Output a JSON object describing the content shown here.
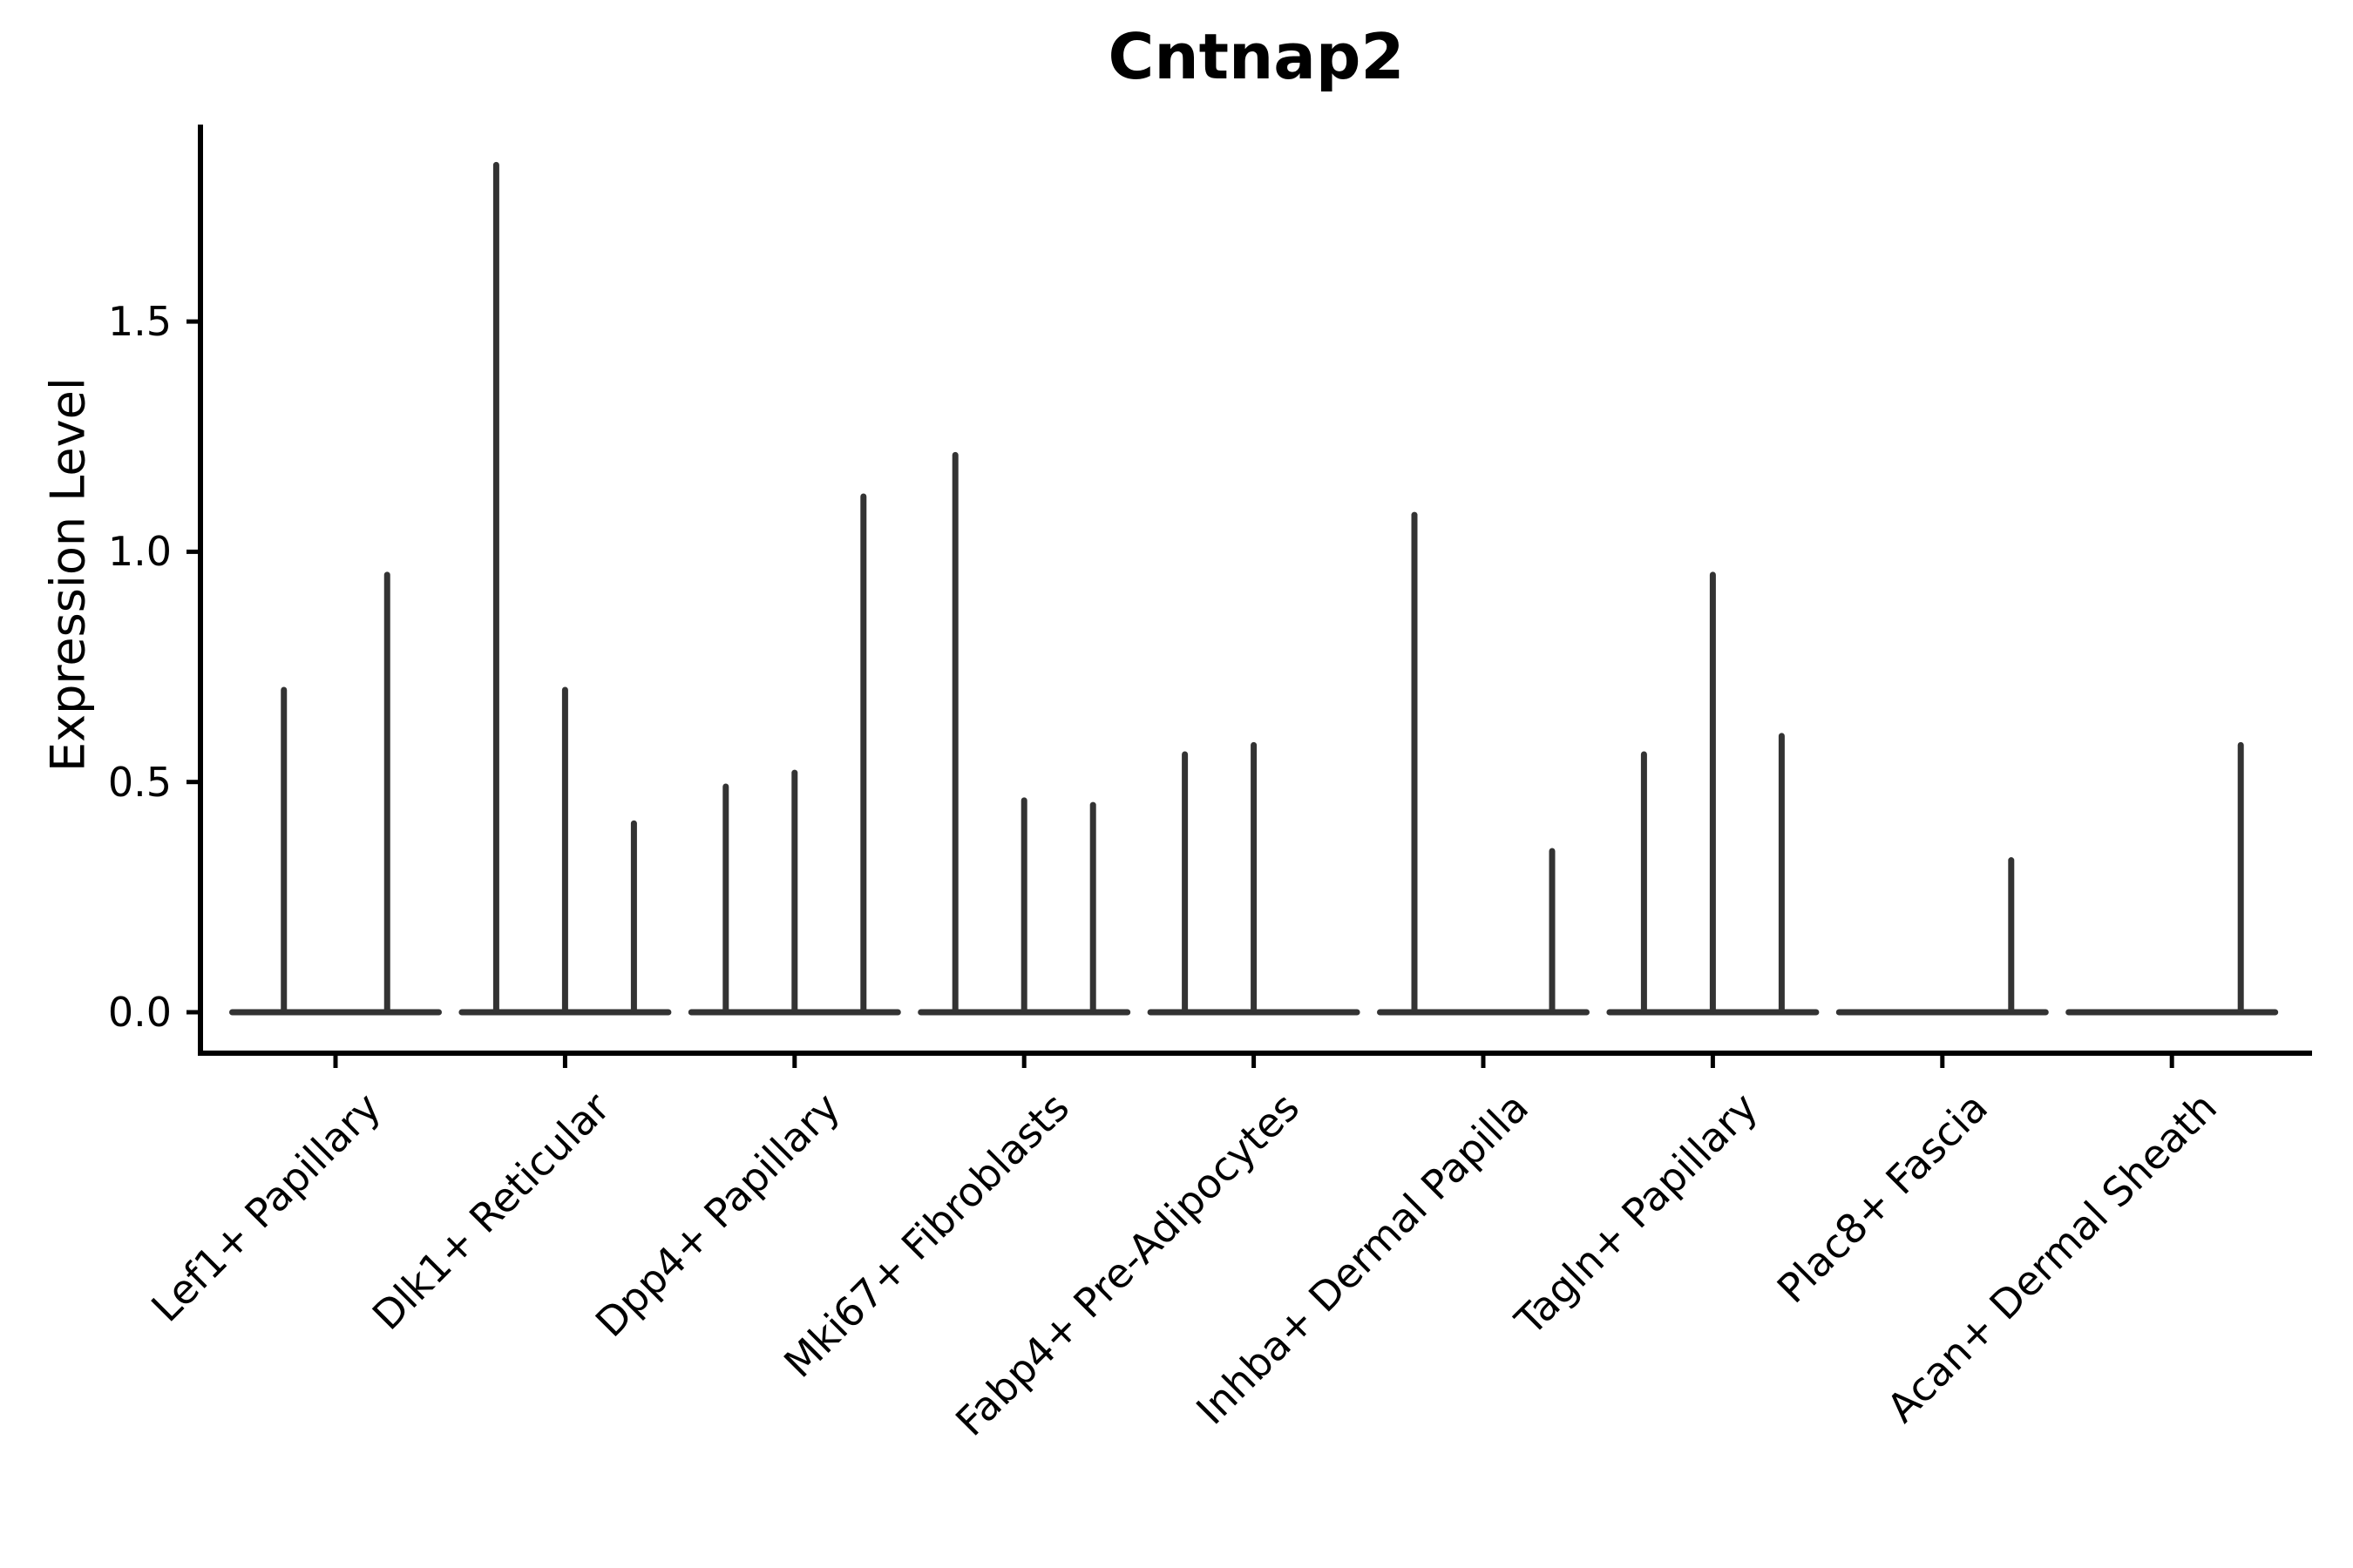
{
  "title": "Cntnap2",
  "y_axis": {
    "label": "Expression Level",
    "tick_labels": [
      "0.0",
      "0.5",
      "1.0",
      "1.5"
    ],
    "tick_values": [
      0.0,
      0.5,
      1.0,
      1.5
    ]
  },
  "x_axis": {
    "categories": [
      "Lef1+ Papillary",
      "Dlk1+ Reticular",
      "Dpp4+ Papillary",
      "Mki67+ Fibroblasts",
      "Fabp4+ Pre-Adipocytes",
      "Inhba+ Dermal Papilla",
      "Tagln+ Papillary",
      "Plac8+ Fascia",
      "Acan+ Dermal Sheath"
    ],
    "rotation_degrees": 45
  },
  "chart_data": {
    "type": "violin",
    "title": "Cntnap2",
    "xlabel": "",
    "ylabel": "Expression Level",
    "ylim": [
      -0.09,
      1.93
    ],
    "yticks": [
      0.0,
      0.5,
      1.0,
      1.5
    ],
    "grid": false,
    "legend": "none",
    "description": "Grouped single-gene violin plot; violins are extremely thin spikes rising from wide flat bases at zero expression. Peak value is the maximum expression level reached by each violin; 0 means a flat violin with no spike.",
    "categories": [
      "Lef1+ Papillary",
      "Dlk1+ Reticular",
      "Dpp4+ Papillary",
      "Mki67+ Fibroblasts",
      "Fabp4+ Pre-Adipocytes",
      "Inhba+ Dermal Papilla",
      "Tagln+ Papillary",
      "Plac8+ Fascia",
      "Acan+ Dermal Sheath"
    ],
    "series": [
      {
        "category": "Lef1+ Papillary",
        "violin_peaks": [
          0.7,
          0.95
        ]
      },
      {
        "category": "Dlk1+ Reticular",
        "violin_peaks": [
          1.84,
          0.7,
          0.41
        ]
      },
      {
        "category": "Dpp4+ Papillary",
        "violin_peaks": [
          0.49,
          0.52,
          1.12
        ]
      },
      {
        "category": "Mki67+ Fibroblasts",
        "violin_peaks": [
          1.21,
          0.46,
          0.45
        ]
      },
      {
        "category": "Fabp4+ Pre-Adipocytes",
        "violin_peaks": [
          0.56,
          0.58,
          0.0
        ]
      },
      {
        "category": "Inhba+ Dermal Papilla",
        "violin_peaks": [
          1.08,
          0.0,
          0.35
        ]
      },
      {
        "category": "Tagln+ Papillary",
        "violin_peaks": [
          0.56,
          0.95,
          0.6
        ]
      },
      {
        "category": "Plac8+ Fascia",
        "violin_peaks": [
          0.0,
          0.0,
          0.33
        ]
      },
      {
        "category": "Acan+ Dermal Sheath",
        "violin_peaks": [
          0.0,
          0.0,
          0.58
        ]
      }
    ]
  },
  "colors": {
    "background": "#ffffff",
    "violin_line": "#333333",
    "axis": "#000000",
    "text": "#000000"
  }
}
